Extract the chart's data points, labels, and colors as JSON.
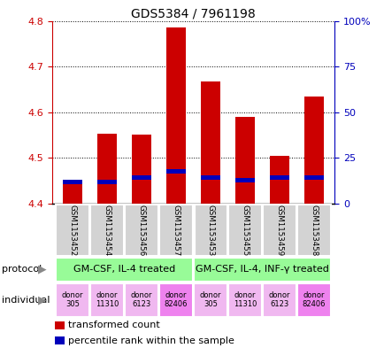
{
  "title": "GDS5384 / 7961198",
  "samples": [
    "GSM1153452",
    "GSM1153454",
    "GSM1153456",
    "GSM1153457",
    "GSM1153453",
    "GSM1153455",
    "GSM1153459",
    "GSM1153458"
  ],
  "red_values": [
    4.442,
    4.553,
    4.552,
    4.785,
    4.668,
    4.59,
    4.504,
    4.635
  ],
  "blue_values": [
    4.447,
    4.447,
    4.457,
    4.47,
    4.457,
    4.452,
    4.457,
    4.457
  ],
  "ymin": 4.4,
  "ymax": 4.8,
  "yticks_left": [
    4.4,
    4.5,
    4.6,
    4.7,
    4.8
  ],
  "ytick_labels_left": [
    "4.4",
    "4.5",
    "4.6",
    "4.7",
    "4.8"
  ],
  "yticks_right": [
    0,
    25,
    50,
    75,
    100
  ],
  "ytick_labels_right": [
    "0",
    "25",
    "50",
    "75",
    "100%"
  ],
  "protocol_labels": [
    "GM-CSF, IL-4 treated",
    "GM-CSF, IL-4, INF-γ treated"
  ],
  "protocol_color": "#98FB98",
  "individual_labels": [
    "donor\n305",
    "donor\n11310",
    "donor\n6123",
    "donor\n82406",
    "donor\n305",
    "donor\n11310",
    "donor\n6123",
    "donor\n82406"
  ],
  "individual_colors": [
    "#F0B8F0",
    "#F0B8F0",
    "#F0B8F0",
    "#EE82EE",
    "#F0B8F0",
    "#F0B8F0",
    "#F0B8F0",
    "#EE82EE"
  ],
  "sample_bg_color": "#D3D3D3",
  "bar_color_red": "#CC0000",
  "bar_color_blue": "#0000BB",
  "bar_width": 0.55,
  "background_color": "#ffffff",
  "left_axis_color": "#CC0000",
  "right_axis_color": "#0000BB",
  "legend_red_label": "transformed count",
  "legend_blue_label": "percentile rank within the sample"
}
